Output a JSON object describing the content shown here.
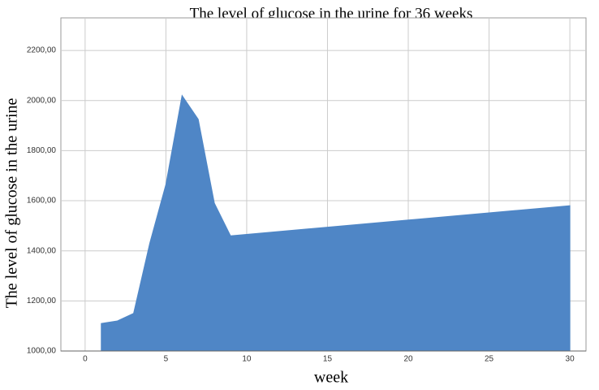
{
  "chart_data": {
    "type": "area",
    "title": "The level of glucose in the urine for 36 weeks",
    "x_label": "week",
    "y_label": "The level of glucose in the urine",
    "x": [
      1,
      2,
      3,
      4,
      5,
      6,
      7,
      8,
      9,
      30
    ],
    "values": [
      1110,
      1120,
      1150,
      1430,
      1665,
      2020,
      1925,
      1590,
      1460,
      1580
    ],
    "color": "#4f86c6",
    "xlim": [
      -1.5,
      31
    ],
    "ylim": [
      1000,
      2330
    ],
    "xticks": [
      0,
      5,
      10,
      15,
      20,
      25,
      30
    ],
    "yticks": [
      {
        "value": 1000,
        "label": "1000,00"
      },
      {
        "value": 1200,
        "label": "1200,00"
      },
      {
        "value": 1400,
        "label": "1400,00"
      },
      {
        "value": 1600,
        "label": "1600,00"
      },
      {
        "value": 1800,
        "label": "1800,00"
      },
      {
        "value": 2000,
        "label": "2000,00"
      },
      {
        "value": 2200,
        "label": "2200,00"
      }
    ],
    "grid": true
  }
}
